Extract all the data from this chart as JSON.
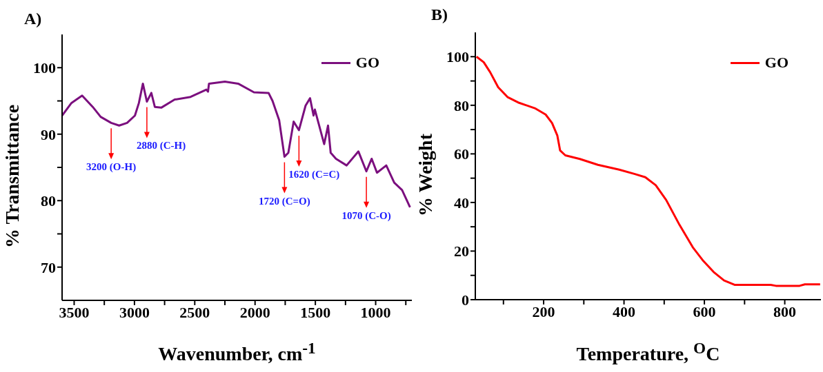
{
  "chart_data": [
    {
      "type": "line",
      "title": "A)",
      "xlabel": "Wavenumber, cm$^{-1}$",
      "ylabel": "% Transmittance",
      "legend": "top right",
      "marker": "none",
      "xlim": [
        3600,
        700
      ],
      "xticks": [
        3500,
        {
          "value": 3250,
          "label": null
        },
        3000,
        {
          "value": 2750,
          "label": null
        },
        2500,
        {
          "value": 2250,
          "label": null
        },
        2000,
        {
          "value": 1750,
          "label": null
        },
        1500,
        {
          "value": 1250,
          "label": null
        },
        1000,
        {
          "value": 750,
          "label": null
        }
      ],
      "ylim": [
        65,
        105
      ],
      "yticks": [
        70,
        {
          "value": 75,
          "label": null
        },
        80,
        {
          "value": 85,
          "label": null
        },
        90,
        {
          "value": 95,
          "label": null
        },
        100
      ],
      "x": [
        3600,
        3522,
        3434,
        3346,
        3280,
        3193,
        3127,
        3061,
        2996,
        2963,
        2930,
        2897,
        2860,
        2831,
        2776,
        2667,
        2535,
        2404,
        2390,
        2382,
        2250,
        2140,
        2009,
        1888,
        1855,
        1800,
        1756,
        1724,
        1680,
        1636,
        1581,
        1544,
        1515,
        1504,
        1427,
        1395,
        1373,
        1329,
        1241,
        1143,
        1077,
        1033,
        989,
        912,
        846,
        781,
        715
      ],
      "series": [
        {
          "name": "GO",
          "color": "#7b0f7e",
          "values": [
            92.8,
            94.7,
            95.8,
            94.1,
            92.6,
            91.7,
            91.3,
            91.7,
            92.8,
            94.7,
            97.6,
            94.9,
            96.2,
            94.1,
            94.0,
            95.2,
            95.6,
            96.7,
            96.4,
            97.6,
            97.9,
            97.6,
            96.3,
            96.2,
            95.0,
            92.1,
            86.6,
            87.2,
            91.9,
            90.6,
            94.3,
            95.4,
            92.8,
            93.7,
            88.5,
            91.3,
            87.2,
            86.3,
            85.3,
            87.4,
            84.4,
            86.3,
            84.2,
            85.3,
            82.7,
            81.6,
            79.0
          ]
        }
      ],
      "annotations": [
        {
          "text": "3200 (O-H)",
          "x": 3193,
          "y": 91.7
        },
        {
          "text": "2880 (C-H)",
          "x": 2897,
          "y": 94.9
        },
        {
          "text": "1720 (C=O)",
          "x": 1756,
          "y": 86.6
        },
        {
          "text": "1620 (C=C)",
          "x": 1636,
          "y": 90.6
        },
        {
          "text": "1070 (C-O)",
          "x": 1077,
          "y": 84.4
        }
      ]
    },
    {
      "type": "line",
      "title": "B)",
      "xlabel": "Temperature, $^{O}$C",
      "ylabel": "% Weight",
      "legend": "top right",
      "marker": "none",
      "xlim": [
        30,
        890
      ],
      "xticks": [
        {
          "value": 100,
          "label": null
        },
        200,
        {
          "value": 300,
          "label": null
        },
        400,
        {
          "value": 500,
          "label": null
        },
        600,
        {
          "value": 700,
          "label": null
        },
        800
      ],
      "ylim": [
        0,
        110
      ],
      "yticks": [
        0,
        {
          "value": 10,
          "label": null
        },
        20,
        {
          "value": 30,
          "label": null
        },
        40,
        {
          "value": 50,
          "label": null
        },
        60,
        {
          "value": 70,
          "label": null
        },
        80,
        {
          "value": 90,
          "label": null
        },
        100
      ],
      "x": [
        33,
        51,
        67,
        87,
        110,
        139,
        178,
        205,
        221,
        234,
        241,
        254,
        290,
        335,
        388,
        427,
        453,
        479,
        505,
        538,
        571,
        597,
        623,
        649,
        675,
        765,
        778,
        837,
        850,
        888
      ],
      "series": [
        {
          "name": "GO",
          "color": "#ff0000",
          "values": [
            100,
            97.7,
            93.6,
            87.4,
            83.4,
            81,
            78.8,
            76.2,
            72.7,
            67.6,
            61.4,
            59.4,
            57.9,
            55.5,
            53.5,
            51.7,
            50.4,
            47.1,
            41,
            30.8,
            21.6,
            16,
            11.4,
            7.9,
            6.1,
            6.1,
            5.7,
            5.7,
            6.3,
            6.3
          ]
        }
      ]
    }
  ]
}
